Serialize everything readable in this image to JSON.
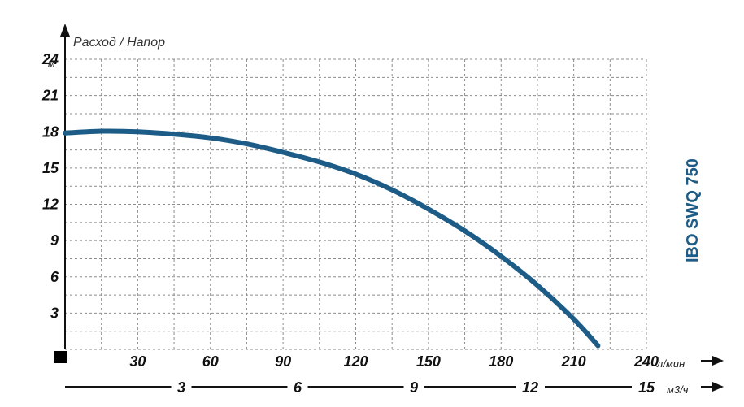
{
  "chart_data": {
    "type": "line",
    "title": "",
    "ylabel": "Расход / Напор",
    "y_unit": "м",
    "ylim": [
      0,
      24
    ],
    "y_ticks": [
      3,
      6,
      9,
      12,
      15,
      18,
      21,
      24
    ],
    "x_unit": "л/мин",
    "xlim": [
      0,
      240
    ],
    "x_ticks": [
      30,
      60,
      90,
      120,
      150,
      180,
      210,
      240
    ],
    "x2_unit": "м3/ч",
    "x2lim": [
      0,
      15
    ],
    "x2_ticks": [
      3,
      6,
      9,
      12,
      15
    ],
    "grid": true,
    "model_label": "IBO SWQ 750",
    "series": [
      {
        "name": "IBO SWQ 750",
        "color": "#1d5c86",
        "points": [
          [
            0,
            17.9
          ],
          [
            15,
            18.05
          ],
          [
            30,
            18.0
          ],
          [
            45,
            17.8
          ],
          [
            60,
            17.5
          ],
          [
            75,
            17.0
          ],
          [
            90,
            16.3
          ],
          [
            105,
            15.5
          ],
          [
            120,
            14.5
          ],
          [
            135,
            13.2
          ],
          [
            150,
            11.6
          ],
          [
            165,
            9.8
          ],
          [
            180,
            7.7
          ],
          [
            195,
            5.3
          ],
          [
            210,
            2.5
          ],
          [
            220,
            0.3
          ]
        ]
      }
    ]
  }
}
